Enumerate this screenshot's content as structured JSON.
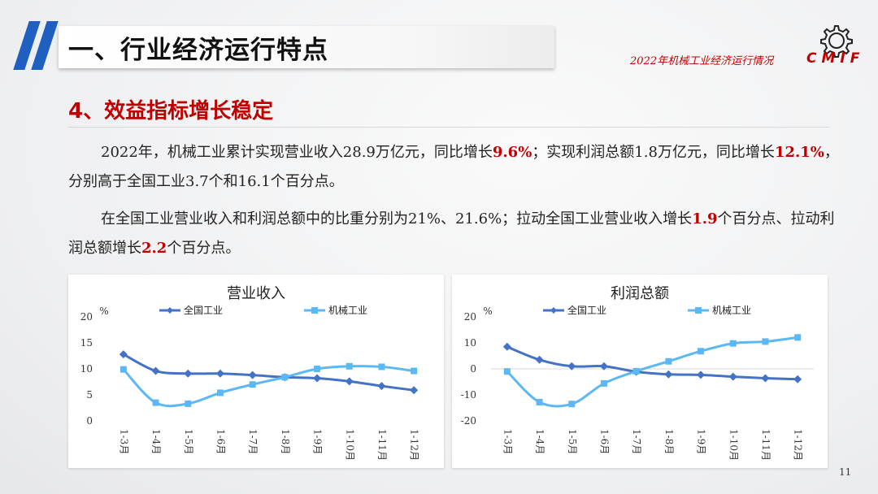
{
  "header": {
    "title": "一、行业经济运行特点",
    "report_label": "2022年机械工业经济运行情况",
    "logo_text": "CMIF"
  },
  "section": {
    "subtitle": "4、效益指标增长稳定"
  },
  "paragraph1": {
    "t1": "2022年，机械工业累计实现营业收入28.9万亿元，同比增长",
    "h1": "9.6%",
    "t2": "；实现利润总额1.8万亿元，同比增长",
    "h2": "12.1%",
    "t3": "，分别高于全国工业3.7个和16.1个百分点。"
  },
  "paragraph2": {
    "t1": "在全国工业营业收入和利润总额中的比重分别为21%、21.6%；拉动全国工业营业收入增长",
    "h1": "1.9",
    "t2": "个百分点、拉动利润总额增长",
    "h2": "2.2",
    "t3": "个百分点。"
  },
  "page_number": "11",
  "colors": {
    "national": "#4472c4",
    "machinery": "#5bb8f5",
    "accent": "#c00000"
  },
  "chart_data": [
    {
      "type": "line",
      "title": "营业收入",
      "ylabel": "%",
      "ylim": [
        0,
        20
      ],
      "yticks": [
        0,
        5,
        10,
        15,
        20
      ],
      "categories": [
        "1-3月",
        "1-4月",
        "1-5月",
        "1-6月",
        "1-7月",
        "1-8月",
        "1-9月",
        "1-10月",
        "1-11月",
        "1-12月"
      ],
      "series": [
        {
          "name": "全国工业",
          "marker": "diamond",
          "values": [
            12.8,
            9.6,
            9.1,
            9.1,
            8.8,
            8.4,
            8.2,
            7.6,
            6.7,
            5.9
          ]
        },
        {
          "name": "机械工业",
          "marker": "square",
          "values": [
            9.9,
            3.5,
            3.3,
            5.4,
            7.0,
            8.4,
            10.0,
            10.5,
            10.4,
            9.6
          ]
        }
      ],
      "legend": "top"
    },
    {
      "type": "line",
      "title": "利润总额",
      "ylabel": "%",
      "ylim": [
        -20,
        20
      ],
      "yticks": [
        -20,
        -10,
        0,
        10,
        20
      ],
      "categories": [
        "1-3月",
        "1-4月",
        "1-5月",
        "1-6月",
        "1-7月",
        "1-8月",
        "1-9月",
        "1-10月",
        "1-11月",
        "1-12月"
      ],
      "series": [
        {
          "name": "全国工业",
          "marker": "diamond",
          "values": [
            8.5,
            3.5,
            1.0,
            1.0,
            -1.1,
            -2.1,
            -2.3,
            -3.0,
            -3.6,
            -4.0
          ]
        },
        {
          "name": "机械工业",
          "marker": "square",
          "values": [
            -1.0,
            -12.8,
            -13.5,
            -5.6,
            -0.9,
            2.9,
            6.8,
            9.8,
            10.5,
            12.1
          ]
        }
      ],
      "legend": "top"
    }
  ]
}
